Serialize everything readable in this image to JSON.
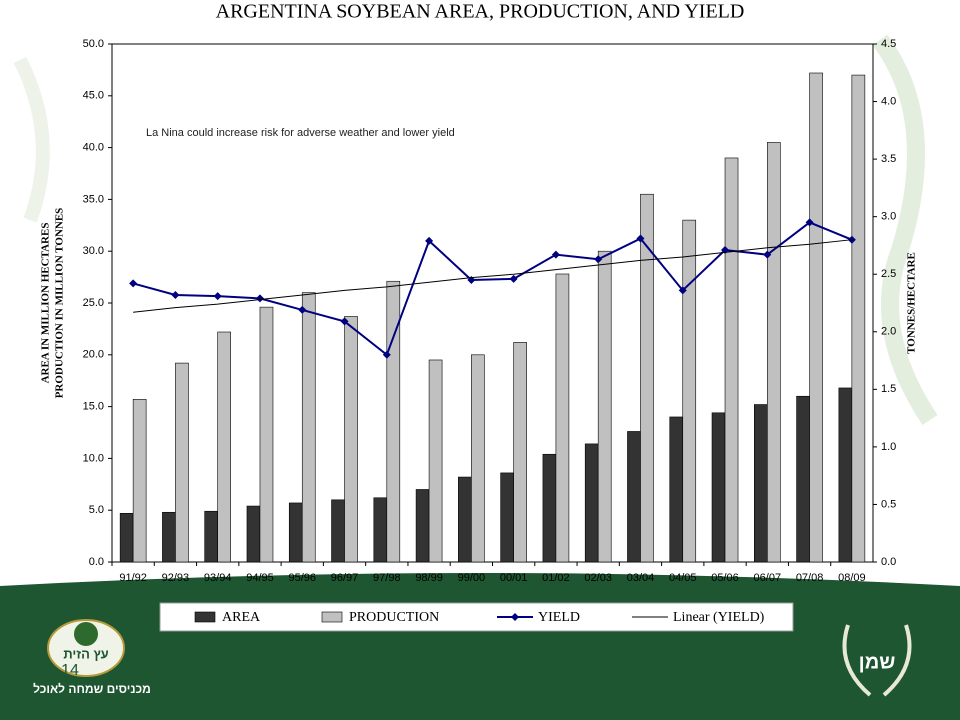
{
  "chart_data": {
    "type": "bar_line",
    "title": "ARGENTINA SOYBEAN AREA, PRODUCTION, AND YIELD",
    "y_label_lines": [
      "AREA IN MILLION HECTARES",
      "PRODUCTION IN MILLION TONNES"
    ],
    "y2_label": "TONNES/HECTARE",
    "annotation": "La Nina could increase risk for adverse weather and lower yield",
    "categories": [
      "91/92",
      "92/93",
      "93/94",
      "94/95",
      "95/96",
      "96/97",
      "97/98",
      "98/99",
      "99/00",
      "00/01",
      "01/02",
      "02/03",
      "03/04",
      "04/05",
      "05/06",
      "06/07",
      "07/08",
      "08/09"
    ],
    "series": [
      {
        "name": "AREA",
        "kind": "bar",
        "color": "#333333",
        "values": [
          4.7,
          4.8,
          4.9,
          5.4,
          5.7,
          6.0,
          6.2,
          7.0,
          8.2,
          8.6,
          10.4,
          11.4,
          12.6,
          14.0,
          14.4,
          15.2,
          16.0,
          16.8
        ]
      },
      {
        "name": "PRODUCTION",
        "kind": "bar",
        "color": "#c0c0c0",
        "values": [
          15.7,
          19.2,
          22.2,
          24.6,
          26.0,
          23.7,
          27.1,
          19.5,
          20.0,
          21.2,
          27.8,
          30.0,
          35.5,
          33.0,
          39.0,
          40.5,
          47.2,
          47.0
        ]
      },
      {
        "name": "YIELD",
        "kind": "line",
        "marker": "diamond",
        "axis": "y2",
        "color": "#000080",
        "values": [
          2.42,
          2.32,
          2.31,
          2.29,
          2.19,
          2.09,
          1.8,
          2.79,
          2.45,
          2.46,
          2.67,
          2.63,
          2.81,
          2.36,
          2.71,
          2.67,
          2.95,
          2.8
        ]
      },
      {
        "name": "Linear (YIELD)",
        "kind": "line",
        "axis": "y2",
        "color": "#000000",
        "values": [
          2.17,
          2.21,
          2.24,
          2.28,
          2.32,
          2.36,
          2.39,
          2.43,
          2.47,
          2.5,
          2.54,
          2.58,
          2.62,
          2.65,
          2.69,
          2.73,
          2.76,
          2.8
        ]
      }
    ],
    "ylim": [
      0,
      50
    ],
    "yticks": [
      {
        "value": 0,
        "label": "0.0"
      },
      {
        "value": 5,
        "label": "5.0"
      },
      {
        "value": 10,
        "label": "10.0"
      },
      {
        "value": 15,
        "label": "15.0"
      },
      {
        "value": 20,
        "label": "20.0"
      },
      {
        "value": 25,
        "label": "25.0"
      },
      {
        "value": 30,
        "label": "30.0"
      },
      {
        "value": 35,
        "label": "35.0"
      },
      {
        "value": 40,
        "label": "40.0"
      },
      {
        "value": 45,
        "label": "45.0"
      },
      {
        "value": 50,
        "label": "50.0"
      }
    ],
    "y2lim": [
      0,
      4.5
    ],
    "y2ticks": [
      {
        "value": 0,
        "label": "0.0"
      },
      0.5,
      {
        "value": 1,
        "label": "1.0"
      },
      1.5,
      {
        "value": 2,
        "label": "2.0"
      },
      2.5,
      {
        "value": 3,
        "label": "3.0"
      },
      3.5,
      {
        "value": 4,
        "label": "4.0"
      },
      4.5
    ],
    "legend": "bottom",
    "grid": false
  },
  "slide": {
    "page_number": "14",
    "logo_left_name": "עץ הזית",
    "logo_left_tagline": "מכניסים שמחה לאוכל",
    "logo_right_name": "שמן"
  }
}
